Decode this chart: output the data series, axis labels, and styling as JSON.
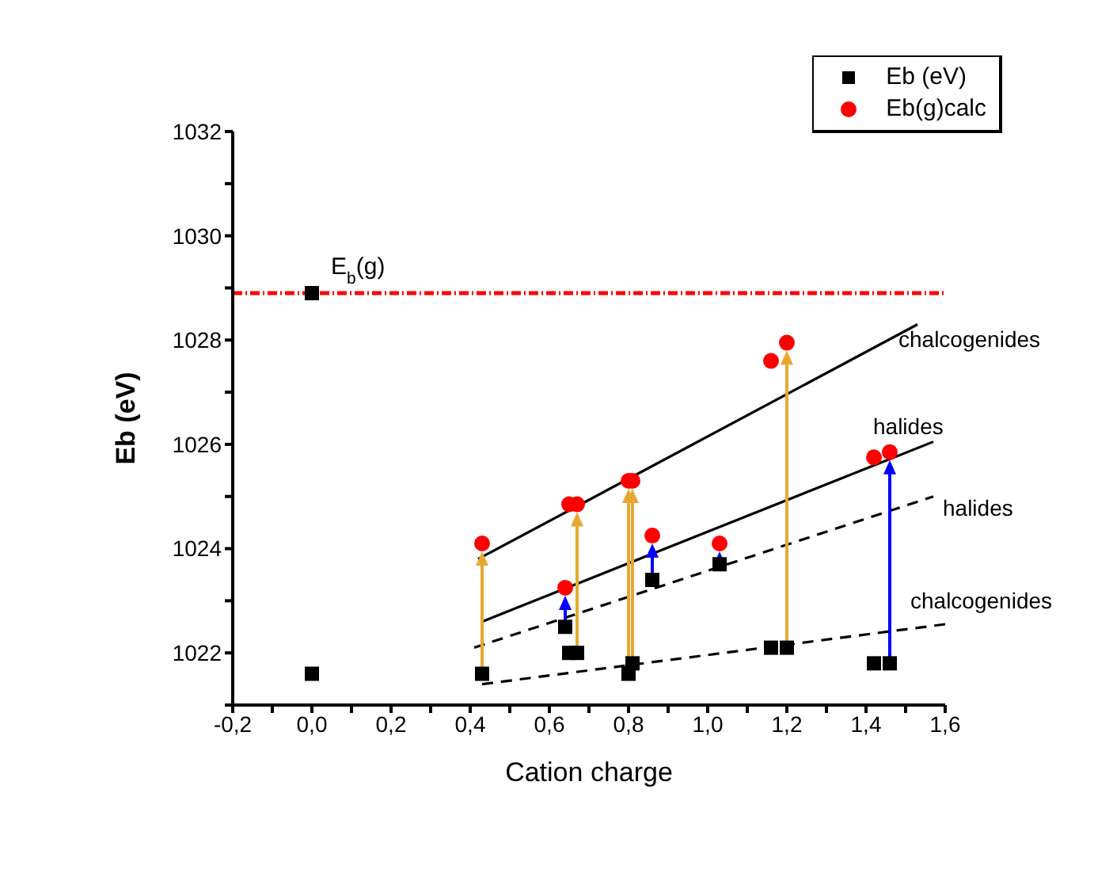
{
  "chart_data": {
    "type": "scatter",
    "xlabel": "Cation charge",
    "ylabel": "Eb (eV)",
    "xlim": [
      -0.2,
      1.6
    ],
    "xticks": [
      {
        "value": -0.2,
        "label": "-0,2"
      },
      {
        "value": -0.1,
        "label": null
      },
      {
        "value": 0,
        "label": "0,0"
      },
      {
        "value": 0.1,
        "label": null
      },
      {
        "value": 0.2,
        "label": "0,2"
      },
      {
        "value": 0.3,
        "label": null
      },
      {
        "value": 0.4,
        "label": "0,4"
      },
      {
        "value": 0.5,
        "label": null
      },
      {
        "value": 0.6,
        "label": "0,6"
      },
      {
        "value": 0.7,
        "label": null
      },
      {
        "value": 0.8,
        "label": "0,8"
      },
      {
        "value": 0.9,
        "label": null
      },
      {
        "value": 1.0,
        "label": "1,0"
      },
      {
        "value": 1.1,
        "label": null
      },
      {
        "value": 1.2,
        "label": "1,2"
      },
      {
        "value": 1.3,
        "label": null
      },
      {
        "value": 1.4,
        "label": "1,4"
      },
      {
        "value": 1.5,
        "label": null
      },
      {
        "value": 1.6,
        "label": "1,6"
      }
    ],
    "ylim": [
      1021,
      1032
    ],
    "yticks": [
      {
        "value": 1021,
        "label": null
      },
      1022,
      {
        "value": 1023,
        "label": null
      },
      1024,
      {
        "value": 1025,
        "label": null
      },
      1026,
      {
        "value": 1027,
        "label": null
      },
      1028,
      {
        "value": 1029,
        "label": null
      },
      1030,
      {
        "value": 1031,
        "label": null
      },
      1032
    ],
    "legend": "top right",
    "series": [
      {
        "name": "Eb (eV)",
        "marker": "square",
        "color": "#000000",
        "x": [
          0,
          0,
          0.43,
          0.64,
          0.65,
          0.67,
          0.8,
          0.81,
          0.86,
          1.03,
          1.16,
          1.2,
          1.42,
          1.46
        ],
        "values": [
          1028.9,
          1021.6,
          1021.6,
          1022.5,
          1022.0,
          1022.0,
          1021.6,
          1021.8,
          1023.4,
          1023.7,
          1022.1,
          1022.1,
          1021.8,
          1021.8
        ]
      },
      {
        "name": "Eb(g)calc",
        "marker": "circle",
        "color": "#ff0000",
        "x": [
          0.43,
          0.64,
          0.65,
          0.67,
          0.8,
          0.81,
          0.86,
          1.03,
          1.16,
          1.2,
          1.42,
          1.46
        ],
        "values": [
          1024.1,
          1023.25,
          1024.85,
          1024.85,
          1025.3,
          1025.3,
          1024.25,
          1024.1,
          1027.6,
          1027.95,
          1025.75,
          1025.85
        ]
      },
      {
        "name": "chalcogenides",
        "type": "line",
        "line_style": "solid",
        "color": "#000000",
        "x": [
          0.42,
          1.53
        ],
        "values": [
          1023.8,
          1028.3
        ]
      },
      {
        "name": "halides",
        "type": "line",
        "line_style": "solid",
        "color": "#000000",
        "x": [
          0.43,
          1.57
        ],
        "values": [
          1022.6,
          1026.05
        ]
      },
      {
        "name": "halides",
        "type": "line",
        "line_style": "dashed",
        "color": "#000000",
        "x": [
          0.41,
          1.57
        ],
        "values": [
          1022.1,
          1025.0
        ]
      },
      {
        "name": "chalcogenides",
        "type": "line",
        "line_style": "dashed",
        "color": "#000000",
        "x": [
          0.43,
          1.6
        ],
        "values": [
          1021.4,
          1022.55
        ]
      }
    ],
    "ref_lines": [
      {
        "axis": "y",
        "value": 1028.9,
        "color": "#ff0000",
        "line_style": "dashdot"
      }
    ],
    "annotations": [
      {
        "text": "E$_{b}$(g)",
        "x": 0,
        "y": 1028.9
      }
    ]
  }
}
